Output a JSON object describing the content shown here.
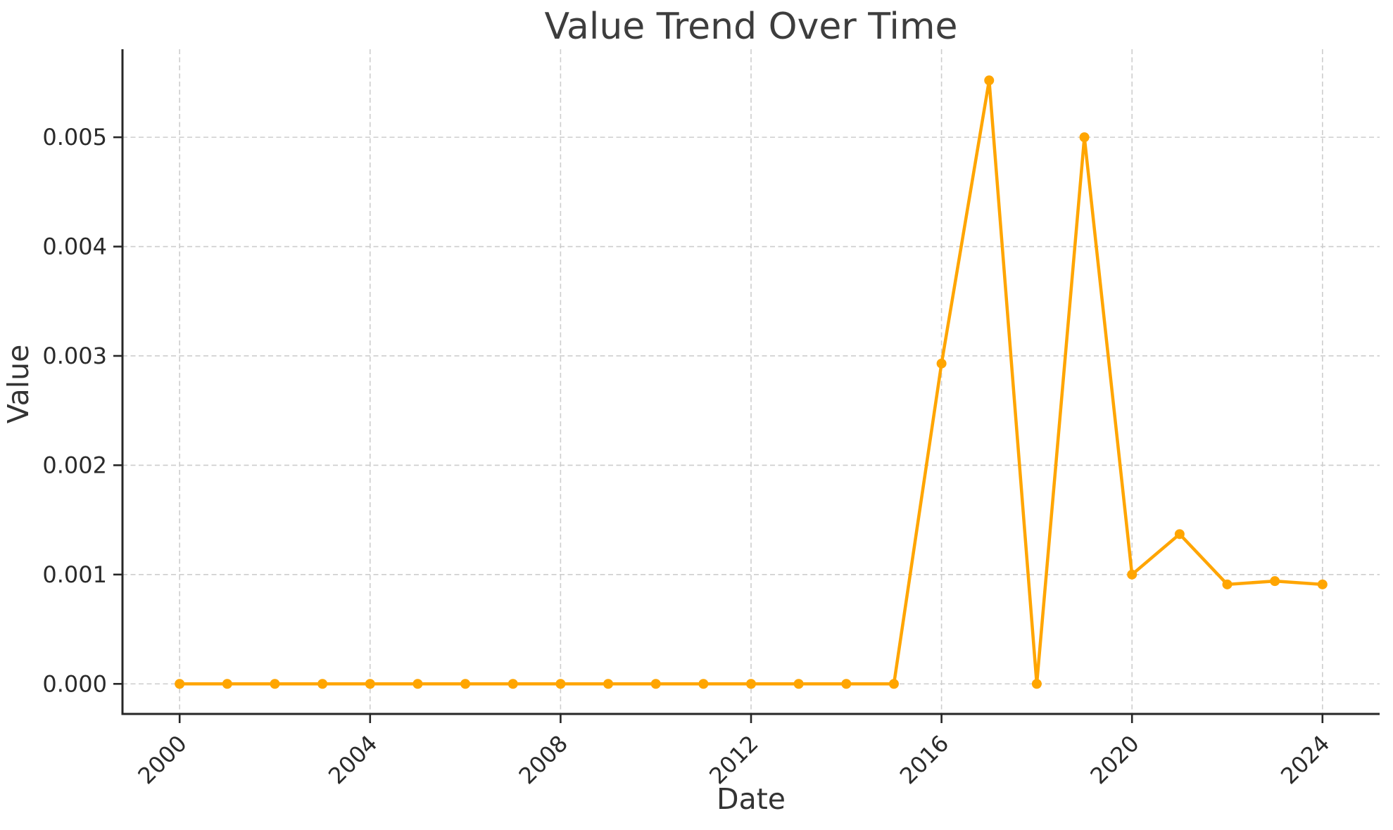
{
  "chart_data": {
    "type": "line",
    "title": "Value Trend Over Time",
    "xlabel": "Date",
    "ylabel": "Value",
    "x": [
      2000,
      2001,
      2002,
      2003,
      2004,
      2005,
      2006,
      2007,
      2008,
      2009,
      2010,
      2011,
      2012,
      2013,
      2014,
      2015,
      2016,
      2017,
      2018,
      2019,
      2020,
      2021,
      2022,
      2023,
      2024
    ],
    "values": [
      0.0,
      0.0,
      0.0,
      0.0,
      0.0,
      0.0,
      0.0,
      0.0,
      0.0,
      0.0,
      0.0,
      0.0,
      0.0,
      0.0,
      0.0,
      0.0,
      0.00293,
      0.00552,
      0.0,
      0.005,
      0.001,
      0.00137,
      0.00091,
      0.00094,
      0.00091
    ],
    "series_name": "Value",
    "x_tick_positions": [
      2000,
      2004,
      2008,
      2012,
      2016,
      2020,
      2024
    ],
    "x_tick_labels": [
      "2000",
      "2004",
      "2008",
      "2012",
      "2016",
      "2020",
      "2024"
    ],
    "y_tick_positions": [
      0.0,
      0.001,
      0.002,
      0.003,
      0.004,
      0.005
    ],
    "y_tick_labels": [
      "0.000",
      "0.001",
      "0.002",
      "0.003",
      "0.004",
      "0.005"
    ],
    "xlim": [
      1998.8,
      2025.2
    ],
    "ylim": [
      -0.000275,
      0.005805
    ],
    "grid": true,
    "grid_style": "dashed",
    "legend": "none",
    "colors": {
      "line": "#FFA500",
      "marker": "#FFA500",
      "grid": "#cdcdcd",
      "spine": "#262626",
      "tick_label": "#2a2a2a",
      "title_text": "#3d3d3d",
      "axis_label_text": "#333333",
      "background": "#ffffff"
    }
  }
}
